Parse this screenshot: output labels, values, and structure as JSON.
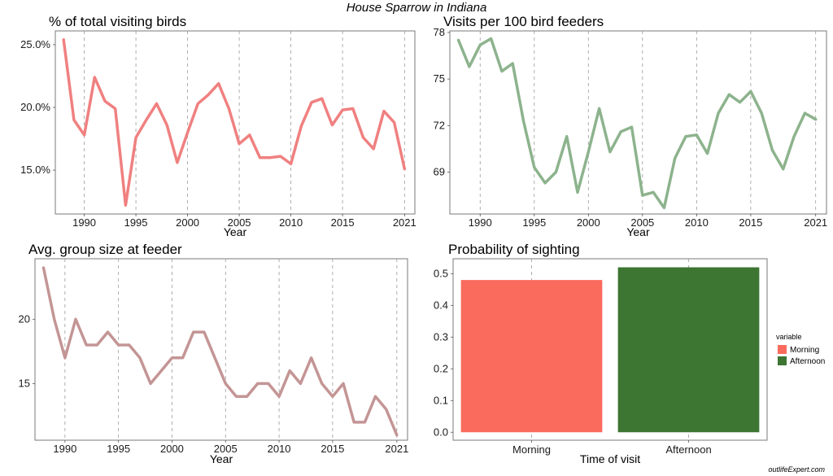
{
  "figure": {
    "title": "House Sparrow in Indiana",
    "watermark": "outlifeExpert.com"
  },
  "chart_data": [
    {
      "type": "line",
      "title": "% of total visiting birds",
      "xlabel": "Year",
      "ylabel": "",
      "color": "#f08080",
      "x": [
        1988,
        1989,
        1990,
        1991,
        1992,
        1993,
        1994,
        1995,
        1996,
        1997,
        1998,
        1999,
        2000,
        2001,
        2002,
        2003,
        2004,
        2005,
        2006,
        2007,
        2008,
        2009,
        2010,
        2011,
        2012,
        2013,
        2014,
        2015,
        2016,
        2017,
        2018,
        2019,
        2020,
        2021
      ],
      "values": [
        25.4,
        19.0,
        17.8,
        22.4,
        20.5,
        19.9,
        12.2,
        17.6,
        19.0,
        20.3,
        18.6,
        15.6,
        18.0,
        20.3,
        21.0,
        21.9,
        19.9,
        17.1,
        17.8,
        16.0,
        16.0,
        16.1,
        15.5,
        18.5,
        20.4,
        20.7,
        18.6,
        19.8,
        19.9,
        17.6,
        16.7,
        19.7,
        18.8,
        15.1
      ],
      "xticks": [
        1990,
        1995,
        2000,
        2005,
        2010,
        2015,
        2021
      ],
      "xtick_labels": [
        "1990",
        "1995",
        "2000",
        "2005",
        "2010",
        "2015",
        "2021"
      ],
      "yticks": [
        15,
        20,
        25
      ],
      "ytick_labels": [
        "15.0%",
        "20.0%",
        "25.0%"
      ],
      "xlim": [
        1987.2,
        2022.0
      ],
      "ylim": [
        11.5,
        26.1
      ],
      "grid": "vertical dashed"
    },
    {
      "type": "line",
      "title": "Visits per 100 bird feeders",
      "xlabel": "Year",
      "ylabel": "",
      "color": "#8db38d",
      "x": [
        1988,
        1989,
        1990,
        1991,
        1992,
        1993,
        1994,
        1995,
        1996,
        1997,
        1998,
        1999,
        2000,
        2001,
        2002,
        2003,
        2004,
        2005,
        2006,
        2007,
        2008,
        2009,
        2010,
        2011,
        2012,
        2013,
        2014,
        2015,
        2016,
        2017,
        2018,
        2019,
        2020,
        2021
      ],
      "values": [
        77.5,
        75.8,
        77.2,
        77.6,
        75.5,
        76.0,
        72.3,
        69.3,
        68.3,
        69.0,
        71.3,
        67.7,
        70.3,
        73.1,
        70.3,
        71.6,
        71.9,
        67.5,
        67.7,
        66.7,
        69.9,
        71.3,
        71.4,
        70.2,
        72.8,
        74.0,
        73.5,
        74.2,
        72.8,
        70.4,
        69.2,
        71.3,
        72.8,
        72.4
      ],
      "xticks": [
        1990,
        1995,
        2000,
        2005,
        2010,
        2015,
        2021
      ],
      "xtick_labels": [
        "1990",
        "1995",
        "2000",
        "2005",
        "2010",
        "2015",
        "2021"
      ],
      "yticks": [
        69,
        72,
        75,
        78
      ],
      "ytick_labels": [
        "69",
        "72",
        "75",
        "78"
      ],
      "xlim": [
        1987.2,
        2022.0
      ],
      "ylim": [
        66.3,
        78.1
      ],
      "grid": "vertical dashed"
    },
    {
      "type": "line",
      "title": "Avg. group size at feeder",
      "xlabel": "Year",
      "ylabel": "",
      "color": "#c49595",
      "x": [
        1988,
        1989,
        1990,
        1991,
        1992,
        1993,
        1994,
        1995,
        1996,
        1997,
        1998,
        1999,
        2000,
        2001,
        2002,
        2003,
        2004,
        2005,
        2006,
        2007,
        2008,
        2009,
        2010,
        2011,
        2012,
        2013,
        2014,
        2015,
        2016,
        2017,
        2018,
        2019,
        2020,
        2021
      ],
      "values": [
        24,
        20,
        17,
        20,
        18,
        18,
        19,
        18,
        18,
        17,
        15,
        16,
        17,
        17,
        19,
        19,
        17,
        15,
        14,
        14,
        15,
        15,
        14,
        16,
        15,
        17,
        15,
        14,
        15,
        12,
        12,
        14,
        13,
        11
      ],
      "xticks": [
        1990,
        1995,
        2000,
        2005,
        2010,
        2015,
        2021
      ],
      "xtick_labels": [
        "1990",
        "1995",
        "2000",
        "2005",
        "2010",
        "2015",
        "2021"
      ],
      "yticks": [
        15,
        20
      ],
      "ytick_labels": [
        "15",
        "20"
      ],
      "xlim": [
        1987.2,
        2022.0
      ],
      "ylim": [
        10.6,
        24.7
      ],
      "grid": "vertical dashed"
    },
    {
      "type": "bar",
      "title": "Probability of sighting",
      "xlabel": "Time of visit",
      "ylabel": "",
      "categories": [
        "Morning",
        "Afternoon"
      ],
      "values": [
        0.48,
        0.52
      ],
      "colors": [
        "#fa6b5e",
        "#3d7533"
      ],
      "yticks": [
        0,
        0.1,
        0.2,
        0.3,
        0.4,
        0.5
      ],
      "ytick_labels": [
        "0.0",
        "0.1",
        "0.2",
        "0.3",
        "0.4",
        "0.5"
      ],
      "ylim": [
        -0.025,
        0.547
      ],
      "grid": "vertical dashed",
      "legend": {
        "title": "variable",
        "entries": [
          "Morning",
          "Afternoon"
        ],
        "placement": "right"
      }
    }
  ]
}
